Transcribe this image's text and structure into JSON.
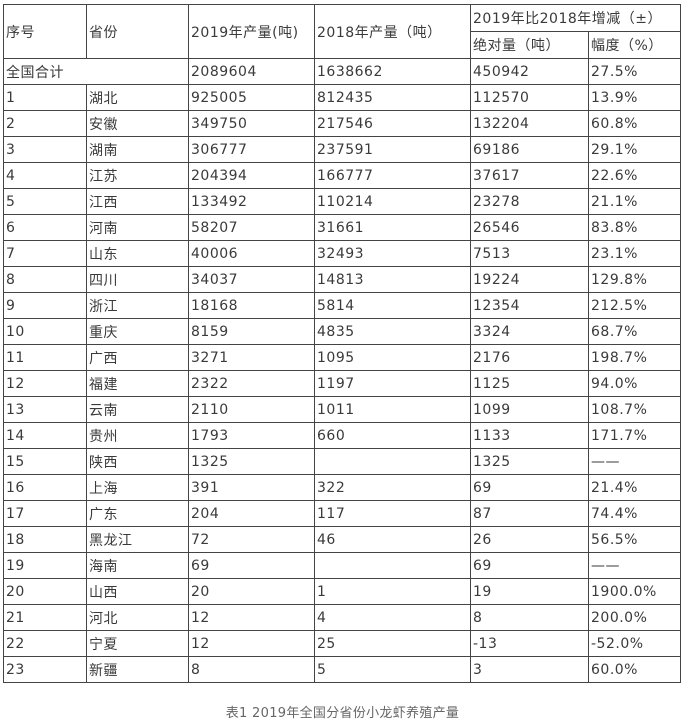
{
  "header": {
    "index": "序号",
    "province": "省份",
    "y2019": "2019年产量(吨)",
    "y2018": "2018年产量（吨）",
    "change": "2019年比2018年增减（±）",
    "absolute": "绝对量（吨）",
    "rate": "幅度（%）"
  },
  "total": {
    "label": "全国合计",
    "y2019": "2089604",
    "y2018": "1638662",
    "absolute": "450942",
    "rate": "27.5%"
  },
  "rows": [
    {
      "index": "1",
      "province": "湖北",
      "y2019": "925005",
      "y2018": "812435",
      "absolute": "112570",
      "rate": "13.9%"
    },
    {
      "index": "2",
      "province": "安徽",
      "y2019": "349750",
      "y2018": "217546",
      "absolute": "132204",
      "rate": "60.8%"
    },
    {
      "index": "3",
      "province": "湖南",
      "y2019": "306777",
      "y2018": "237591",
      "absolute": "69186",
      "rate": "29.1%"
    },
    {
      "index": "4",
      "province": "江苏",
      "y2019": "204394",
      "y2018": "166777",
      "absolute": "37617",
      "rate": "22.6%"
    },
    {
      "index": "5",
      "province": "江西",
      "y2019": "133492",
      "y2018": "110214",
      "absolute": "23278",
      "rate": "21.1%"
    },
    {
      "index": "6",
      "province": "河南",
      "y2019": "58207",
      "y2018": "31661",
      "absolute": "26546",
      "rate": "83.8%"
    },
    {
      "index": "7",
      "province": "山东",
      "y2019": "40006",
      "y2018": "32493",
      "absolute": "7513",
      "rate": "23.1%"
    },
    {
      "index": "8",
      "province": "四川",
      "y2019": "34037",
      "y2018": "14813",
      "absolute": "19224",
      "rate": "129.8%"
    },
    {
      "index": "9",
      "province": "浙江",
      "y2019": "18168",
      "y2018": "5814",
      "absolute": "12354",
      "rate": "212.5%"
    },
    {
      "index": "10",
      "province": "重庆",
      "y2019": "8159",
      "y2018": "4835",
      "absolute": "3324",
      "rate": "68.7%"
    },
    {
      "index": "11",
      "province": "广西",
      "y2019": "3271",
      "y2018": "1095",
      "absolute": "2176",
      "rate": "198.7%"
    },
    {
      "index": "12",
      "province": "福建",
      "y2019": "2322",
      "y2018": "1197",
      "absolute": "1125",
      "rate": "94.0%"
    },
    {
      "index": "13",
      "province": "云南",
      "y2019": "2110",
      "y2018": "1011",
      "absolute": "1099",
      "rate": "108.7%"
    },
    {
      "index": "14",
      "province": "贵州",
      "y2019": "1793",
      "y2018": "660",
      "absolute": "1133",
      "rate": "171.7%"
    },
    {
      "index": "15",
      "province": "陕西",
      "y2019": "1325",
      "y2018": "",
      "absolute": "1325",
      "rate": "——"
    },
    {
      "index": "16",
      "province": "上海",
      "y2019": "391",
      "y2018": "322",
      "absolute": "69",
      "rate": "21.4%"
    },
    {
      "index": "17",
      "province": "广东",
      "y2019": "204",
      "y2018": "117",
      "absolute": "87",
      "rate": "74.4%"
    },
    {
      "index": "18",
      "province": "黑龙江",
      "y2019": "72",
      "y2018": "46",
      "absolute": "26",
      "rate": "56.5%"
    },
    {
      "index": "19",
      "province": "海南",
      "y2019": "69",
      "y2018": "",
      "absolute": "69",
      "rate": "——"
    },
    {
      "index": "20",
      "province": "山西",
      "y2019": "20",
      "y2018": "1",
      "absolute": "19",
      "rate": "1900.0%"
    },
    {
      "index": "21",
      "province": "河北",
      "y2019": "12",
      "y2018": "4",
      "absolute": "8",
      "rate": "200.0%"
    },
    {
      "index": "22",
      "province": "宁夏",
      "y2019": "12",
      "y2018": "25",
      "absolute": "-13",
      "rate": "-52.0%"
    },
    {
      "index": "23",
      "province": "新疆",
      "y2019": "8",
      "y2018": "5",
      "absolute": "3",
      "rate": "60.0%"
    }
  ],
  "caption": "表1  2019年全国分省份小龙虾养殖产量"
}
